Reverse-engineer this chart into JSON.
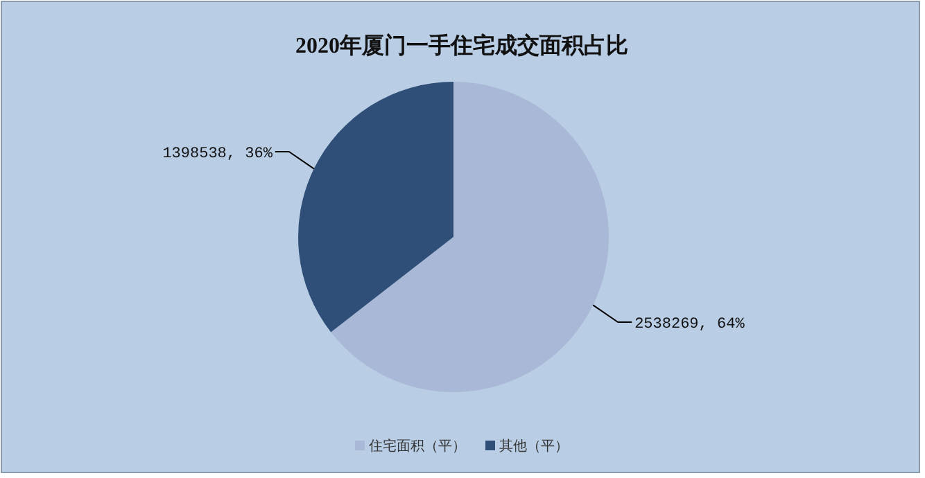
{
  "chart_data": {
    "type": "pie",
    "title": "2020年厦门一手住宅成交面积占比",
    "categories": [
      "住宅面积（平）",
      "其他（平）"
    ],
    "values": [
      2538269,
      1398538
    ],
    "colors": [
      "#a9b8d6",
      "#2f4f78"
    ],
    "value_labels": [
      "2538269, 64%",
      "1398538, 36%"
    ],
    "legend": "bottom"
  }
}
